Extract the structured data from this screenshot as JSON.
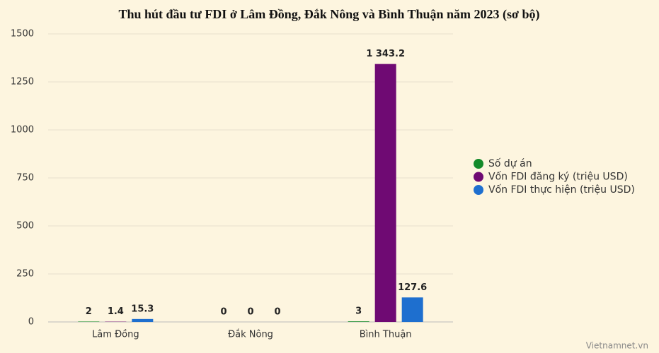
{
  "chart_data": {
    "type": "bar",
    "title": "Thu hút đầu tư FDI ở Lâm Đồng, Đắk Nông và Bình Thuận năm 2023 (sơ bộ)",
    "categories": [
      "Lâm Đồng",
      "Đắk Nông",
      "Bình Thuận"
    ],
    "series": [
      {
        "name": "Số dự án",
        "color": "#138a2a",
        "values": [
          2,
          0,
          3
        ]
      },
      {
        "name": "Vốn FDI đăng ký (triệu USD)",
        "color": "#6f0a73",
        "values": [
          1.4,
          0,
          1343.2
        ],
        "value_labels": [
          "1.4",
          "0",
          "1 343.2"
        ]
      },
      {
        "name": "Vốn FDI thực hiện (triệu USD)",
        "color": "#1e6fcf",
        "values": [
          15.3,
          0,
          127.6
        ]
      }
    ],
    "ylim": [
      0,
      1500
    ],
    "yticks": [
      0,
      250,
      500,
      750,
      1000,
      1250,
      1500
    ],
    "grid": true,
    "legend": "right",
    "source": "Vietnamnet.vn"
  }
}
